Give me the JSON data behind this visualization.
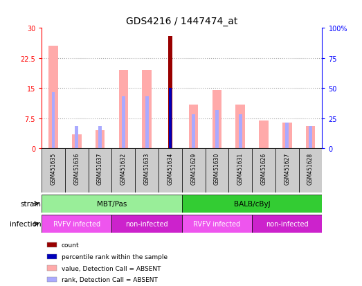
{
  "title": "GDS4216 / 1447474_at",
  "samples": [
    "GSM451635",
    "GSM451636",
    "GSM451637",
    "GSM451632",
    "GSM451633",
    "GSM451634",
    "GSM451629",
    "GSM451630",
    "GSM451631",
    "GSM451626",
    "GSM451627",
    "GSM451628"
  ],
  "count_values": [
    0,
    0,
    0,
    0,
    0,
    28,
    0,
    0,
    0,
    0,
    0,
    0
  ],
  "count_color": "#990000",
  "value_absent": [
    25.5,
    3.5,
    4.5,
    19.5,
    19.5,
    0,
    11,
    14.5,
    11,
    7,
    6.5,
    5.5
  ],
  "value_absent_color": "#ffaaaa",
  "rank_absent_top": [
    14,
    5.5,
    5.5,
    13,
    13,
    15,
    8.5,
    9.5,
    8.5,
    0,
    6.5,
    5.5
  ],
  "rank_absent_color": "#aaaaff",
  "percentile_rank_val": [
    0,
    0,
    0,
    0,
    0,
    15,
    0,
    0,
    0,
    0,
    0,
    0
  ],
  "percentile_rank_color": "#0000bb",
  "ylim_left": [
    0,
    30
  ],
  "ylim_right": [
    0,
    100
  ],
  "yticks_left": [
    0,
    7.5,
    15,
    22.5,
    30
  ],
  "yticks_right": [
    0,
    25,
    50,
    75,
    100
  ],
  "strain_groups": [
    {
      "label": "MBT/Pas",
      "start": 0,
      "end": 6,
      "color": "#99ee99"
    },
    {
      "label": "BALB/cByJ",
      "start": 6,
      "end": 12,
      "color": "#33cc33"
    }
  ],
  "infection_groups": [
    {
      "label": "RVFV infected",
      "start": 0,
      "end": 3,
      "color": "#ee55ee"
    },
    {
      "label": "non-infected",
      "start": 3,
      "end": 6,
      "color": "#cc22cc"
    },
    {
      "label": "RVFV infected",
      "start": 6,
      "end": 9,
      "color": "#ee55ee"
    },
    {
      "label": "non-infected",
      "start": 9,
      "end": 12,
      "color": "#cc22cc"
    }
  ],
  "legend_items": [
    {
      "label": "count",
      "color": "#990000"
    },
    {
      "label": "percentile rank within the sample",
      "color": "#0000bb"
    },
    {
      "label": "value, Detection Call = ABSENT",
      "color": "#ffaaaa"
    },
    {
      "label": "rank, Detection Call = ABSENT",
      "color": "#aaaaff"
    }
  ],
  "sample_bg_color": "#cccccc",
  "plot_bg_color": "#ffffff",
  "title_fontsize": 10,
  "tick_fontsize": 7,
  "label_fontsize": 7.5,
  "bar_width": 0.4
}
